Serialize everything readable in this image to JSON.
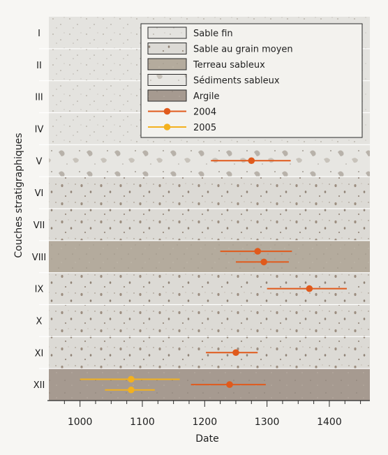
{
  "chart_data": {
    "type": "scatter",
    "xlabel": "Date",
    "ylabel": "Couches stratigraphiques",
    "xlim": [
      950,
      1465
    ],
    "xticks": [
      1000,
      1100,
      1200,
      1300,
      1400
    ],
    "layers": [
      "I",
      "II",
      "III",
      "IV",
      "V",
      "VI",
      "VII",
      "VIII",
      "IX",
      "X",
      "XI",
      "XII"
    ],
    "layer_types": [
      "Sable fin",
      "Sable fin",
      "Sable fin",
      "Sable fin",
      "Sédiments sableux",
      "Sable au grain moyen",
      "Sable au grain moyen",
      "Terreau sableux",
      "Sable au grain moyen",
      "Sable au grain moyen",
      "Sable au grain moyen",
      "Argile"
    ],
    "legend": {
      "position": "top-right",
      "materials": [
        {
          "label": "Sable fin",
          "color": "#e4e3df"
        },
        {
          "label": "Sable au grain moyen",
          "color": "#dcdad5"
        },
        {
          "label": "Terreau sableux",
          "color": "#b4ab9d"
        },
        {
          "label": "Sédiments sableux",
          "color": "#e7e6e2"
        },
        {
          "label": "Argile",
          "color": "#a69a90"
        }
      ]
    },
    "series": [
      {
        "name": "2004",
        "color": "#e05a1c",
        "points": [
          {
            "layer": "V",
            "x": 1275,
            "xmin": 1210,
            "xmax": 1338
          },
          {
            "layer": "VIII",
            "x": 1285,
            "xmin": 1225,
            "xmax": 1340
          },
          {
            "layer": "VIII",
            "x": 1295,
            "xmin": 1250,
            "xmax": 1335
          },
          {
            "layer": "IX",
            "x": 1368,
            "xmin": 1300,
            "xmax": 1428
          },
          {
            "layer": "XI",
            "x": 1250,
            "xmin": 1202,
            "xmax": 1285
          },
          {
            "layer": "XII",
            "x": 1240,
            "xmin": 1178,
            "xmax": 1298
          }
        ]
      },
      {
        "name": "2005",
        "color": "#f3b11e",
        "points": [
          {
            "layer": "XII",
            "x": 1082,
            "xmin": 1000,
            "xmax": 1160
          },
          {
            "layer": "XII",
            "x": 1082,
            "xmin": 1040,
            "xmax": 1120
          }
        ]
      }
    ]
  }
}
